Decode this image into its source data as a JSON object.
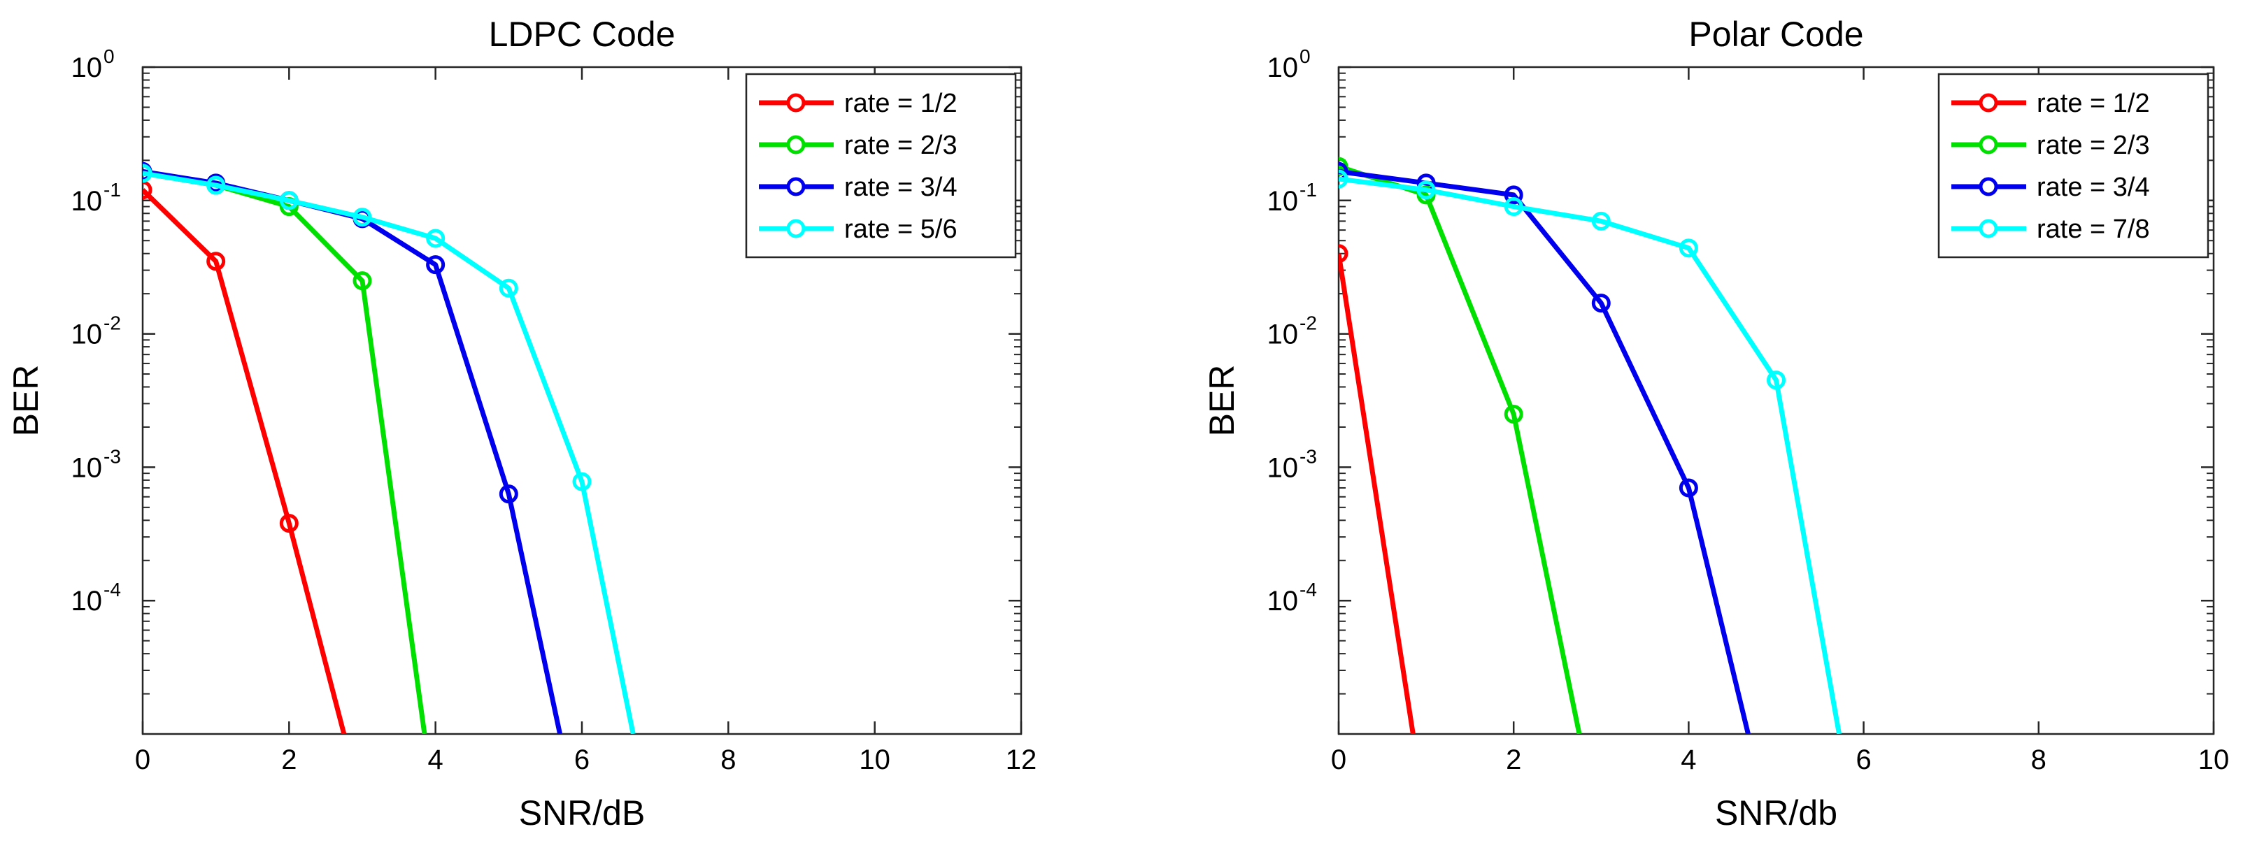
{
  "chart_data": [
    {
      "type": "line",
      "title": "LDPC Code",
      "xlabel": "SNR/dB",
      "ylabel": "BER",
      "yscale": "log",
      "xlim": [
        0,
        12
      ],
      "ylim": [
        1e-05,
        1
      ],
      "xticks": [
        "0",
        "2",
        "4",
        "6",
        "8",
        "10",
        "12"
      ],
      "yticks": [
        {
          "base": "10",
          "exp": "0"
        },
        {
          "base": "10",
          "exp": "-1"
        },
        {
          "base": "10",
          "exp": "-2"
        },
        {
          "base": "10",
          "exp": "-3"
        },
        {
          "base": "10",
          "exp": "-4"
        }
      ],
      "legend_position": "top-right",
      "series": [
        {
          "name": "rate = 1/2",
          "color": "#ff0000",
          "x": [
            0,
            1,
            2,
            2.75
          ],
          "y": [
            0.12,
            0.035,
            0.00038,
            1e-05
          ]
        },
        {
          "name": "rate = 2/3",
          "color": "#00e000",
          "x": [
            0,
            1,
            2,
            3,
            3.85
          ],
          "y": [
            0.16,
            0.13,
            0.09,
            0.025,
            1e-05
          ]
        },
        {
          "name": "rate = 3/4",
          "color": "#0000ee",
          "x": [
            0,
            1,
            2,
            3,
            4,
            5,
            5.7
          ],
          "y": [
            0.165,
            0.135,
            0.1,
            0.073,
            0.033,
            0.00063,
            1e-05
          ]
        },
        {
          "name": "rate = 5/6",
          "color": "#00ffff",
          "x": [
            0,
            1,
            2,
            3,
            4,
            5,
            6,
            6.7
          ],
          "y": [
            0.16,
            0.13,
            0.1,
            0.075,
            0.052,
            0.022,
            0.00078,
            1e-05
          ]
        }
      ]
    },
    {
      "type": "line",
      "title": "Polar Code",
      "xlabel": "SNR/db",
      "ylabel": "BER",
      "yscale": "log",
      "xlim": [
        0,
        10
      ],
      "ylim": [
        1e-05,
        1
      ],
      "xticks": [
        "0",
        "2",
        "4",
        "6",
        "8",
        "10"
      ],
      "yticks": [
        {
          "base": "10",
          "exp": "0"
        },
        {
          "base": "10",
          "exp": "-1"
        },
        {
          "base": "10",
          "exp": "-2"
        },
        {
          "base": "10",
          "exp": "-3"
        },
        {
          "base": "10",
          "exp": "-4"
        }
      ],
      "legend_position": "top-right",
      "series": [
        {
          "name": "rate = 1/2",
          "color": "#ff0000",
          "x": [
            0,
            0.85
          ],
          "y": [
            0.04,
            1e-05
          ]
        },
        {
          "name": "rate = 2/3",
          "color": "#00e000",
          "x": [
            0,
            1,
            2,
            2.75
          ],
          "y": [
            0.18,
            0.11,
            0.0025,
            1e-05
          ]
        },
        {
          "name": "rate = 3/4",
          "color": "#0000ee",
          "x": [
            0,
            1,
            2,
            3,
            4,
            4.68
          ],
          "y": [
            0.165,
            0.135,
            0.11,
            0.017,
            0.0007,
            1e-05
          ]
        },
        {
          "name": "rate = 7/8",
          "color": "#00ffff",
          "x": [
            0,
            1,
            2,
            3,
            4,
            5,
            5.72
          ],
          "y": [
            0.145,
            0.12,
            0.09,
            0.07,
            0.044,
            0.0045,
            1e-05
          ]
        }
      ]
    }
  ]
}
